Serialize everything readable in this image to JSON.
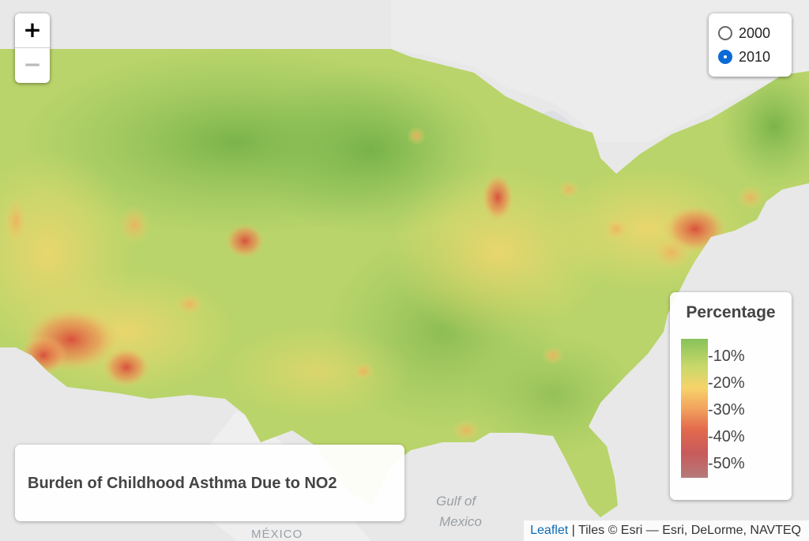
{
  "map": {
    "background": "#e9e9e9",
    "water_color": "#d8dbdf",
    "land_color": "#f1f1f1",
    "place_labels": [
      "Gulf of",
      "Mexico",
      "MÉXICO"
    ]
  },
  "zoom": {
    "in_label": "+",
    "out_label": "−"
  },
  "year_control": {
    "options": [
      {
        "label": "2000",
        "checked": false
      },
      {
        "label": "2010",
        "checked": true
      }
    ]
  },
  "legend": {
    "title": "Percentage",
    "ticks": [
      "-10%",
      "-20%",
      "-30%",
      "-40%",
      "-50%"
    ],
    "colors": [
      "#88c15a",
      "#c8d96a",
      "#f6d36a",
      "#f2a35e",
      "#e26a4d",
      "#c85a5a",
      "#b57a7a"
    ]
  },
  "title": "Burden of Childhood Asthma Due to NO2",
  "attribution": {
    "link_text": "Leaflet",
    "separator": " | ",
    "tiles_text": "Tiles © Esri — Esri, DeLorme, NAVTEQ"
  }
}
